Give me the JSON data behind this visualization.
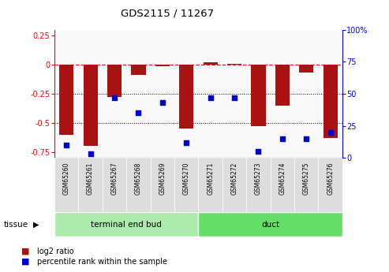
{
  "title": "GDS2115 / 11267",
  "samples": [
    "GSM65260",
    "GSM65261",
    "GSM65267",
    "GSM65268",
    "GSM65269",
    "GSM65270",
    "GSM65271",
    "GSM65272",
    "GSM65273",
    "GSM65274",
    "GSM65275",
    "GSM65276"
  ],
  "log2_ratio": [
    -0.6,
    -0.7,
    -0.28,
    -0.09,
    -0.01,
    -0.55,
    0.02,
    0.01,
    -0.53,
    -0.35,
    -0.07,
    -0.63
  ],
  "percentile": [
    10,
    3,
    47,
    35,
    43,
    12,
    47,
    47,
    5,
    15,
    15,
    20
  ],
  "groups": [
    {
      "label": "terminal end bud",
      "start": 0,
      "end": 6,
      "color": "#AAEAAA"
    },
    {
      "label": "duct",
      "start": 6,
      "end": 12,
      "color": "#66DD66"
    }
  ],
  "ylim_left": [
    -0.8,
    0.3
  ],
  "ylim_right": [
    0,
    100
  ],
  "yticks_left": [
    -0.75,
    -0.5,
    -0.25,
    0,
    0.25
  ],
  "yticks_right": [
    0,
    25,
    50,
    75,
    100
  ],
  "bar_color": "#AA1111",
  "dot_color": "#0000CC",
  "zero_line_color": "#CC2222",
  "grid_color": "#000000",
  "tissue_label": "tissue",
  "legend_log2": "log2 ratio",
  "legend_pct": "percentile rank within the sample",
  "bg_color": "#EEEEEE"
}
